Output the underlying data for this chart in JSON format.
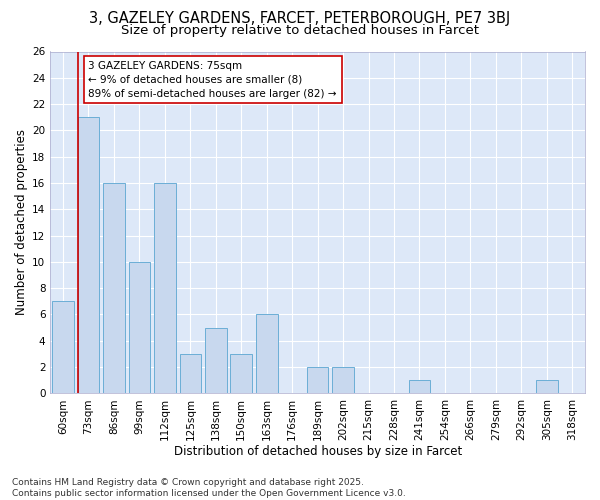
{
  "title1": "3, GAZELEY GARDENS, FARCET, PETERBOROUGH, PE7 3BJ",
  "title2": "Size of property relative to detached houses in Farcet",
  "xlabel": "Distribution of detached houses by size in Farcet",
  "ylabel": "Number of detached properties",
  "categories": [
    "60sqm",
    "73sqm",
    "86sqm",
    "99sqm",
    "112sqm",
    "125sqm",
    "138sqm",
    "150sqm",
    "163sqm",
    "176sqm",
    "189sqm",
    "202sqm",
    "215sqm",
    "228sqm",
    "241sqm",
    "254sqm",
    "266sqm",
    "279sqm",
    "292sqm",
    "305sqm",
    "318sqm"
  ],
  "values": [
    7,
    21,
    16,
    10,
    16,
    3,
    5,
    3,
    6,
    0,
    2,
    2,
    0,
    0,
    1,
    0,
    0,
    0,
    0,
    1,
    0
  ],
  "bar_color": "#c8d8ee",
  "bar_edge_color": "#6baed6",
  "bar_edge_width": 0.7,
  "ref_line_color": "#cc0000",
  "ref_line_index": 1,
  "annotation_text": "3 GAZELEY GARDENS: 75sqm\n← 9% of detached houses are smaller (8)\n89% of semi-detached houses are larger (82) →",
  "annotation_box_facecolor": "#ffffff",
  "annotation_box_edgecolor": "#cc0000",
  "ylim": [
    0,
    26
  ],
  "yticks": [
    0,
    2,
    4,
    6,
    8,
    10,
    12,
    14,
    16,
    18,
    20,
    22,
    24,
    26
  ],
  "plot_bg": "#dde8f8",
  "fig_bg": "#ffffff",
  "grid_color": "#ffffff",
  "footer": "Contains HM Land Registry data © Crown copyright and database right 2025.\nContains public sector information licensed under the Open Government Licence v3.0.",
  "title1_fontsize": 10.5,
  "title2_fontsize": 9.5,
  "xlabel_fontsize": 8.5,
  "ylabel_fontsize": 8.5,
  "tick_fontsize": 7.5,
  "annot_fontsize": 7.5,
  "footer_fontsize": 6.5
}
